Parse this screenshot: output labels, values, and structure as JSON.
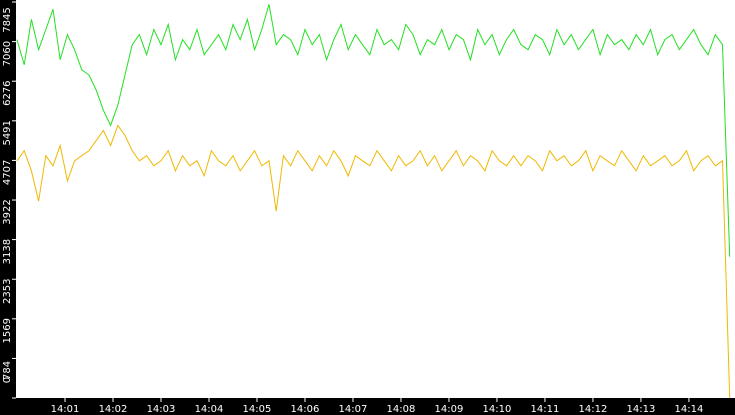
{
  "chart_data": {
    "type": "line",
    "x": [
      0,
      0.15,
      0.3,
      0.45,
      0.6,
      0.75,
      0.9,
      1.05,
      1.2,
      1.35,
      1.5,
      1.65,
      1.8,
      1.95,
      2.1,
      2.25,
      2.4,
      2.55,
      2.7,
      2.85,
      3,
      3.15,
      3.3,
      3.45,
      3.6,
      3.75,
      3.9,
      4.05,
      4.2,
      4.35,
      4.5,
      4.65,
      4.8,
      4.95,
      5.1,
      5.25,
      5.4,
      5.55,
      5.7,
      5.85,
      6,
      6.15,
      6.3,
      6.45,
      6.6,
      6.75,
      6.9,
      7.05,
      7.2,
      7.35,
      7.5,
      7.65,
      7.8,
      7.95,
      8.1,
      8.25,
      8.4,
      8.55,
      8.7,
      8.85,
      9,
      9.15,
      9.3,
      9.45,
      9.6,
      9.75,
      9.9,
      10.05,
      10.2,
      10.35,
      10.5,
      10.65,
      10.8,
      10.95,
      11.1,
      11.25,
      11.4,
      11.55,
      11.7,
      11.85,
      12,
      12.15,
      12.3,
      12.45,
      12.6,
      12.75,
      12.9,
      13.05,
      13.2,
      13.35,
      13.5,
      13.65,
      13.8,
      13.95,
      14.1,
      14.25,
      14.4,
      14.55,
      14.7,
      14.85
    ],
    "series": [
      {
        "color": "#22e022",
        "values": [
          7100,
          6600,
          7500,
          6900,
          7300,
          7700,
          6700,
          7200,
          6900,
          6500,
          6400,
          6100,
          5700,
          5400,
          5800,
          6400,
          7000,
          7200,
          6800,
          7300,
          7000,
          7400,
          6700,
          7100,
          6900,
          7300,
          6800,
          7000,
          7200,
          6900,
          7400,
          7100,
          7500,
          6900,
          7300,
          7800,
          7000,
          7200,
          7100,
          6800,
          7300,
          7000,
          7200,
          6700,
          7100,
          7400,
          6900,
          7200,
          7000,
          6800,
          7300,
          7000,
          7100,
          6900,
          7400,
          7200,
          6800,
          7100,
          7000,
          7300,
          6900,
          7200,
          7100,
          6700,
          7300,
          7000,
          7200,
          6800,
          7100,
          7300,
          7000,
          6900,
          7200,
          7100,
          6800,
          7300,
          7000,
          7200,
          6900,
          7100,
          7300,
          6800,
          7200,
          7000,
          7100,
          6900,
          7200,
          7000,
          7300,
          6800,
          7100,
          7200,
          6900,
          7100,
          7300,
          7000,
          6800,
          7200,
          7000,
          2800
        ]
      },
      {
        "color": "#f0b800",
        "values": [
          4700,
          4900,
          4500,
          3900,
          4800,
          4600,
          5000,
          4300,
          4700,
          4800,
          4900,
          5100,
          5300,
          5000,
          5400,
          5200,
          4900,
          4700,
          4800,
          4600,
          4700,
          4900,
          4500,
          4800,
          4600,
          4700,
          4400,
          4900,
          4700,
          4600,
          4800,
          4500,
          4700,
          4900,
          4600,
          4700,
          3700,
          4800,
          4600,
          4900,
          4700,
          4500,
          4800,
          4600,
          4900,
          4700,
          4400,
          4800,
          4700,
          4600,
          4900,
          4700,
          4500,
          4800,
          4600,
          4700,
          4900,
          4600,
          4800,
          4500,
          4700,
          4900,
          4600,
          4800,
          4700,
          4500,
          4900,
          4700,
          4600,
          4800,
          4600,
          4800,
          4700,
          4500,
          4900,
          4700,
          4800,
          4600,
          4700,
          4900,
          4500,
          4800,
          4700,
          4600,
          4900,
          4700,
          4500,
          4800,
          4600,
          4700,
          4800,
          4600,
          4700,
          4900,
          4500,
          4700,
          4800,
          4600,
          4700,
          0
        ]
      }
    ],
    "xlim": [
      0,
      14.96
    ],
    "xticks": [
      {
        "value": 1,
        "label": "14:01"
      },
      {
        "value": 2,
        "label": "14:02"
      },
      {
        "value": 3,
        "label": "14:03"
      },
      {
        "value": 4,
        "label": "14:04"
      },
      {
        "value": 5,
        "label": "14:05"
      },
      {
        "value": 6,
        "label": "14:06"
      },
      {
        "value": 7,
        "label": "14:07"
      },
      {
        "value": 8,
        "label": "14:08"
      },
      {
        "value": 9,
        "label": "14:09"
      },
      {
        "value": 10,
        "label": "14:10"
      },
      {
        "value": 11,
        "label": "14:11"
      },
      {
        "value": 12,
        "label": "14:12"
      },
      {
        "value": 13,
        "label": "14:13"
      },
      {
        "value": 14,
        "label": "14:14"
      }
    ],
    "ylim": [
      0,
      7845
    ],
    "yticks": [
      0,
      784,
      1569,
      2353,
      3138,
      3922,
      4707,
      5491,
      6276,
      7060,
      7845
    ]
  }
}
